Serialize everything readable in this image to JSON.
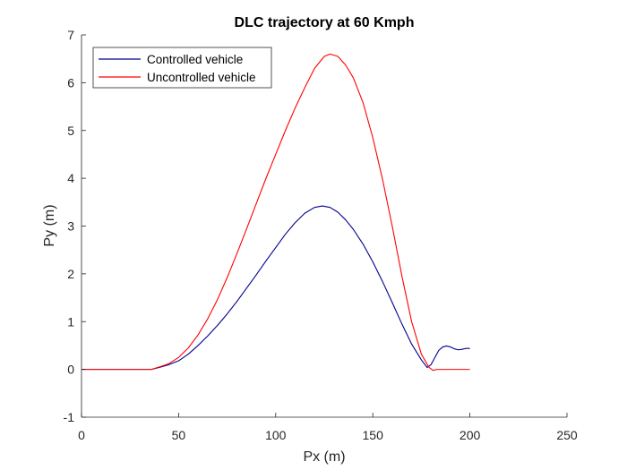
{
  "chart_data": {
    "type": "line",
    "title": "DLC trajectory at 60 Kmph",
    "xlabel": "Px (m)",
    "ylabel": "Py (m)",
    "xlim": [
      0,
      250
    ],
    "ylim": [
      -1,
      7
    ],
    "xticks": [
      "0",
      "50",
      "100",
      "150",
      "200",
      "250"
    ],
    "yticks": [
      "-1",
      "0",
      "1",
      "2",
      "3",
      "4",
      "5",
      "6",
      "7"
    ],
    "grid": false,
    "legend_position": "top-left",
    "series": [
      {
        "name": "Controlled vehicle",
        "color": "#00008b",
        "x": [
          0,
          36,
          40,
          45,
          50,
          55,
          60,
          65,
          70,
          75,
          80,
          85,
          90,
          95,
          100,
          105,
          110,
          115,
          120,
          124,
          128,
          132,
          136,
          140,
          145,
          150,
          155,
          160,
          165,
          170,
          175,
          178,
          180,
          182,
          184,
          186,
          188,
          190,
          192,
          194,
          196,
          198,
          200
        ],
        "y": [
          0,
          0,
          0.04,
          0.1,
          0.18,
          0.32,
          0.5,
          0.7,
          0.92,
          1.16,
          1.42,
          1.7,
          1.98,
          2.27,
          2.55,
          2.83,
          3.07,
          3.27,
          3.39,
          3.42,
          3.39,
          3.29,
          3.13,
          2.93,
          2.62,
          2.25,
          1.84,
          1.4,
          0.95,
          0.53,
          0.2,
          0.04,
          0.1,
          0.25,
          0.4,
          0.47,
          0.49,
          0.47,
          0.43,
          0.41,
          0.42,
          0.44,
          0.44
        ]
      },
      {
        "name": "Uncontrolled vehicle",
        "color": "#ff0000",
        "x": [
          0,
          36,
          40,
          45,
          50,
          55,
          60,
          65,
          70,
          75,
          80,
          85,
          90,
          95,
          100,
          105,
          110,
          115,
          120,
          125,
          128,
          132,
          136,
          140,
          145,
          150,
          155,
          160,
          165,
          170,
          175,
          179,
          181,
          183,
          185,
          190,
          200
        ],
        "y": [
          0,
          0,
          0.05,
          0.12,
          0.25,
          0.45,
          0.72,
          1.06,
          1.46,
          1.92,
          2.42,
          2.94,
          3.47,
          4.0,
          4.5,
          5.0,
          5.47,
          5.9,
          6.3,
          6.55,
          6.6,
          6.55,
          6.37,
          6.1,
          5.58,
          4.85,
          3.98,
          3.0,
          1.95,
          1.0,
          0.32,
          0.04,
          -0.02,
          0.0,
          0.0,
          0.0,
          0.0
        ]
      }
    ]
  }
}
